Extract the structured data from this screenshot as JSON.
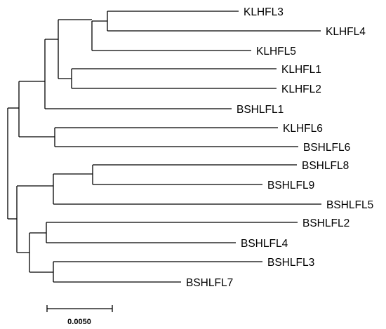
{
  "tree": {
    "taxa": [
      {
        "id": "klhfl3",
        "label": "KLHFL3"
      },
      {
        "id": "klhfl4",
        "label": "KLHFL4"
      },
      {
        "id": "klhfl5",
        "label": "KLHFL5"
      },
      {
        "id": "klhfl1",
        "label": "KLHFL1"
      },
      {
        "id": "klhfl2",
        "label": "KLHFL2"
      },
      {
        "id": "bshlfl1",
        "label": "BSHLFL1"
      },
      {
        "id": "klhfl6",
        "label": "KLHFL6"
      },
      {
        "id": "bshlfl6",
        "label": "BSHLFL6"
      },
      {
        "id": "bshlfl8",
        "label": "BSHLFL8"
      },
      {
        "id": "bshlfl9",
        "label": "BSHLFL9"
      },
      {
        "id": "bshlfl5",
        "label": "BSHLFL5"
      },
      {
        "id": "bshlfl2",
        "label": "BSHLFL2"
      },
      {
        "id": "bshlfl4",
        "label": "BSHLFL4"
      },
      {
        "id": "bshlfl3",
        "label": "BSHLFL3"
      },
      {
        "id": "bshlfl7",
        "label": "BSHLFL7"
      }
    ]
  },
  "scale_bar": {
    "label": "0.0050"
  }
}
